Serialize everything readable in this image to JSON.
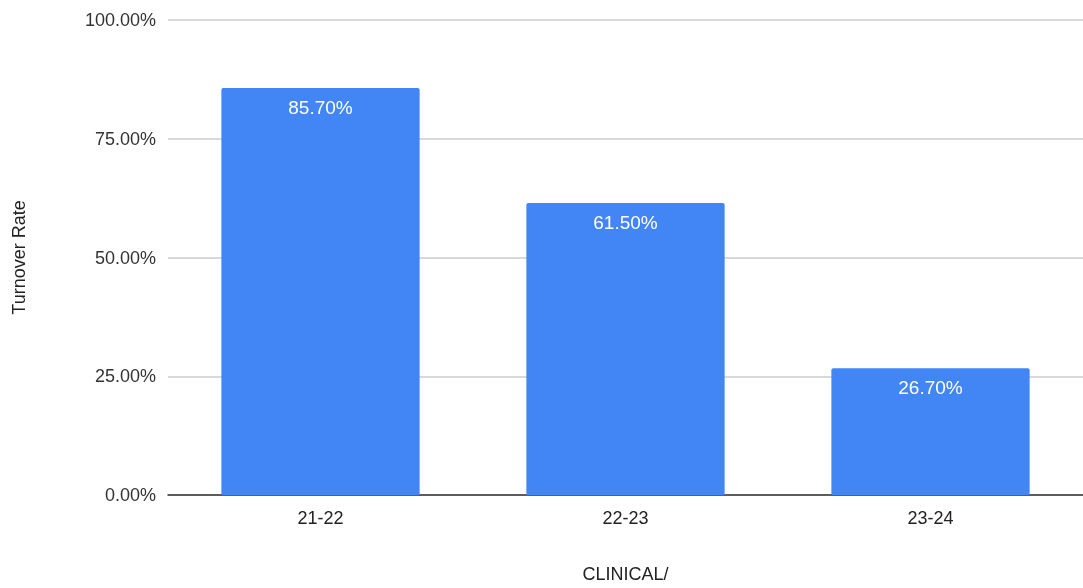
{
  "chart_data": {
    "type": "bar",
    "xlabel": "CLINICAL/",
    "ylabel": "Turnover Rate",
    "categories": [
      "21-22",
      "22-23",
      "23-24"
    ],
    "values": [
      85.7,
      61.5,
      26.7
    ],
    "value_labels": [
      "85.70%",
      "61.50%",
      "26.70%"
    ],
    "color": "#4285f4",
    "ylim": [
      0,
      100
    ],
    "yticks": [
      {
        "value": 0,
        "label": "0.00%"
      },
      {
        "value": 25,
        "label": "25.00%"
      },
      {
        "value": 50,
        "label": "50.00%"
      },
      {
        "value": 75,
        "label": "75.00%"
      },
      {
        "value": 100,
        "label": "100.00%"
      }
    ],
    "grid": "y"
  }
}
